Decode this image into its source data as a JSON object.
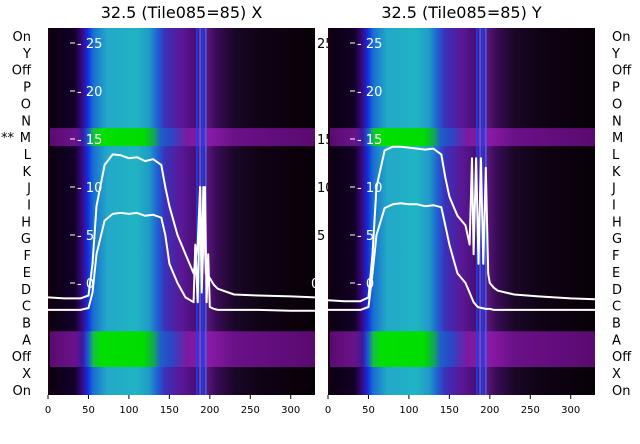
{
  "figure": {
    "row_labels": [
      "On",
      "Y",
      "Off",
      "P",
      "O",
      "N",
      "M",
      "L",
      "K",
      "J",
      "I",
      "H",
      "G",
      "F",
      "E",
      "D",
      "C",
      "B",
      "A",
      "Off",
      "X",
      "On"
    ],
    "marker": "**"
  },
  "chart_data": [
    {
      "type": "heatmap",
      "title": "32.5 (Tile085=85) X",
      "xlabel": "",
      "ylabel": "",
      "xlim": [
        0,
        330
      ],
      "x_ticks": [
        0,
        50,
        100,
        150,
        200,
        250,
        300
      ],
      "y_ticks": [
        0,
        5,
        10,
        15,
        20,
        25
      ],
      "y_ticks_outer_right": [
        5,
        10,
        15,
        25
      ],
      "series": [
        {
          "x": [
            0,
            20,
            40,
            50,
            55,
            60,
            70,
            80,
            90,
            100,
            110,
            120,
            130,
            140,
            145,
            150,
            160,
            170,
            180,
            185,
            188,
            190,
            192,
            195,
            200,
            205,
            210,
            230,
            260,
            300,
            330
          ],
          "y": [
            -1.5,
            -1.6,
            -1.6,
            -1.3,
            2,
            8,
            12.3,
            13.4,
            13.3,
            13.0,
            13.1,
            12.7,
            12.9,
            12.3,
            10,
            8,
            5,
            3,
            1,
            4,
            10,
            1,
            10,
            1,
            0.5,
            -0.2,
            -0.6,
            -1.2,
            -1.3,
            -1.4,
            -1.5
          ]
        },
        {
          "x": [
            0,
            20,
            40,
            50,
            55,
            60,
            70,
            80,
            90,
            100,
            110,
            120,
            130,
            140,
            145,
            150,
            160,
            170,
            180,
            182,
            185,
            188,
            190,
            192,
            194,
            196,
            198,
            200,
            205,
            210,
            230,
            260,
            300,
            330
          ],
          "y": [
            -2.8,
            -2.8,
            -2.8,
            -2.6,
            -1,
            3,
            6.5,
            7.2,
            7.3,
            7.2,
            7.3,
            7.0,
            7.1,
            6.8,
            5,
            2,
            0,
            -1.5,
            -2,
            4,
            -2,
            10,
            -1,
            4,
            10,
            -2,
            3,
            -2.5,
            -2.7,
            -2.8,
            -2.8,
            -2.8,
            -2.9,
            -2.9
          ]
        }
      ]
    },
    {
      "type": "heatmap",
      "title": "32.5 (Tile085=85) Y",
      "xlabel": "",
      "ylabel": "",
      "xlim": [
        0,
        330
      ],
      "x_ticks": [
        0,
        50,
        100,
        150,
        200,
        250,
        300
      ],
      "y_ticks": [
        0,
        5,
        10,
        15,
        20,
        25
      ],
      "series": [
        {
          "x": [
            0,
            20,
            40,
            50,
            55,
            60,
            70,
            80,
            90,
            100,
            110,
            120,
            130,
            140,
            145,
            150,
            155,
            160,
            170,
            175,
            178,
            180,
            183,
            186,
            189,
            192,
            195,
            198,
            200,
            205,
            210,
            230,
            260,
            300,
            330
          ],
          "y": [
            -1.8,
            -1.9,
            -1.9,
            -1.5,
            3,
            10,
            13.8,
            14.2,
            14.2,
            14.1,
            14.0,
            13.9,
            14.0,
            13.4,
            11,
            9,
            8,
            7,
            6,
            4,
            13,
            3,
            13,
            2,
            13,
            2,
            12,
            1,
            0,
            -0.5,
            -0.8,
            -1.2,
            -1.4,
            -1.6,
            -1.7
          ]
        },
        {
          "x": [
            0,
            20,
            40,
            50,
            55,
            60,
            70,
            80,
            90,
            100,
            110,
            120,
            130,
            140,
            145,
            150,
            155,
            160,
            170,
            175,
            180,
            185,
            190,
            195,
            200,
            205,
            210,
            230,
            260,
            300,
            330
          ],
          "y": [
            -2.8,
            -2.8,
            -2.8,
            -2.5,
            1,
            5,
            7.8,
            8.2,
            8.3,
            8.2,
            8.2,
            8.0,
            8.1,
            7.9,
            6,
            4,
            2.5,
            1,
            0,
            -1,
            -2,
            -2.5,
            -2.6,
            -2.7,
            -2.7,
            -2.8,
            -2.8,
            -2.8,
            -2.8,
            -2.8,
            -2.8
          ]
        }
      ]
    }
  ]
}
